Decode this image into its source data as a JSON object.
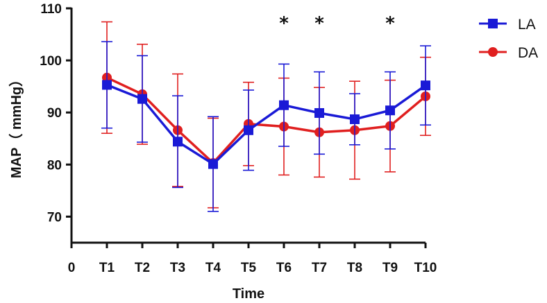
{
  "chart_data": {
    "type": "line",
    "title": "",
    "xlabel": "Time",
    "ylabel": "MAP（ mmHg）",
    "x_ticks": [
      "0",
      "T1",
      "T2",
      "T3",
      "T4",
      "T5",
      "T6",
      "T7",
      "T8",
      "T9",
      "T10"
    ],
    "categories": [
      "T1",
      "T2",
      "T3",
      "T4",
      "T5",
      "T6",
      "T7",
      "T8",
      "T9",
      "T10"
    ],
    "ylim": [
      65,
      110
    ],
    "y_ticks": [
      70,
      80,
      90,
      100,
      110
    ],
    "grid": false,
    "legend_position": "top-right",
    "series": [
      {
        "name": "LA",
        "color": "#1a1ad6",
        "marker": "square",
        "values": [
          95.3,
          92.6,
          84.4,
          80.1,
          86.6,
          91.4,
          89.9,
          88.7,
          90.4,
          95.2
        ],
        "error": [
          8.3,
          8.3,
          8.8,
          9.1,
          7.7,
          7.9,
          7.9,
          4.9,
          7.4,
          7.6
        ]
      },
      {
        "name": "DA",
        "color": "#e01f1f",
        "marker": "circle",
        "values": [
          96.7,
          93.5,
          86.6,
          80.3,
          87.8,
          87.3,
          86.2,
          86.6,
          87.4,
          93.1
        ],
        "error": [
          10.7,
          9.6,
          10.8,
          8.6,
          8.0,
          9.3,
          8.6,
          9.4,
          8.8,
          7.5
        ]
      }
    ],
    "annotations": [
      {
        "category": "T6",
        "text": "*"
      },
      {
        "category": "T7",
        "text": "*"
      },
      {
        "category": "T9",
        "text": "*"
      }
    ]
  }
}
